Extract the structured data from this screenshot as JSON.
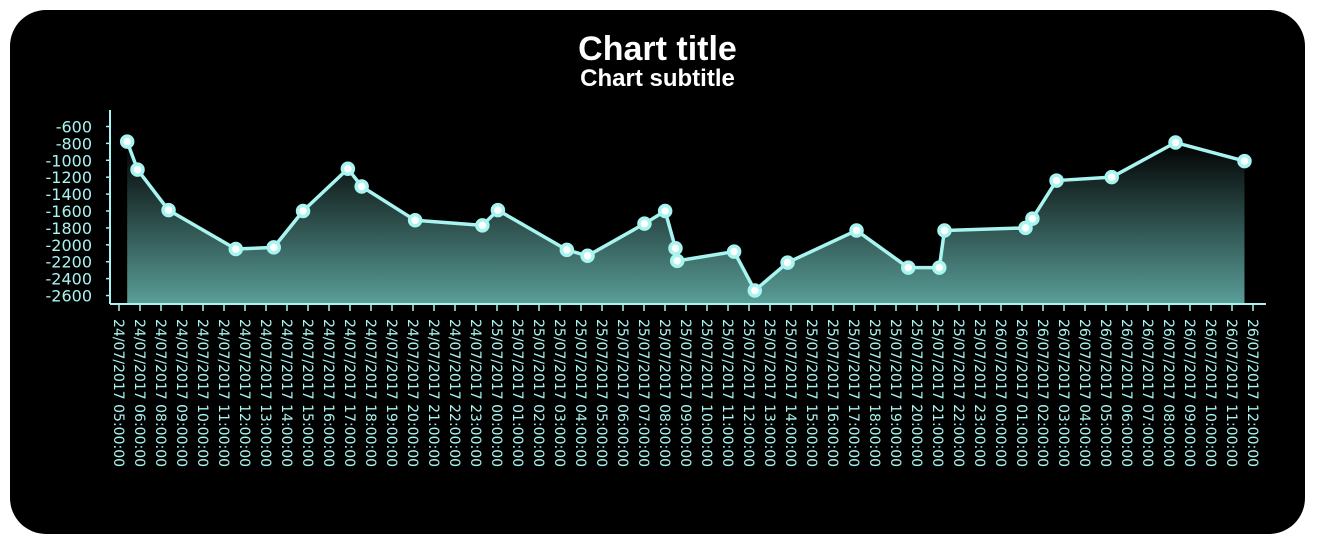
{
  "chart_data": {
    "type": "area",
    "title": "Chart title",
    "subtitle": "Chart subtitle",
    "xlabel": "",
    "ylabel": "",
    "ylim": [
      -2700,
      -500
    ],
    "yticks": [
      -600,
      -800,
      -1000,
      -1200,
      -1400,
      -1600,
      -1800,
      -2000,
      -2200,
      -2400,
      -2600
    ],
    "x_range": [
      "24/07/2017 05:00:00",
      "26/07/2017 12:00:00"
    ],
    "x_tick_labels": [
      "24/07/2017 05:00:00",
      "24/07/2017 06:00:00",
      "24/07/2017 08:00:00",
      "24/07/2017 09:00:00",
      "24/07/2017 10:00:00",
      "24/07/2017 11:00:00",
      "24/07/2017 12:00:00",
      "24/07/2017 13:00:00",
      "24/07/2017 14:00:00",
      "24/07/2017 15:00:00",
      "24/07/2017 16:00:00",
      "24/07/2017 17:00:00",
      "24/07/2017 18:00:00",
      "24/07/2017 19:00:00",
      "24/07/2017 20:00:00",
      "24/07/2017 21:00:00",
      "24/07/2017 22:00:00",
      "24/07/2017 23:00:00",
      "25/07/2017 00:00:00",
      "25/07/2017 01:00:00",
      "25/07/2017 02:00:00",
      "25/07/2017 03:00:00",
      "25/07/2017 04:00:00",
      "25/07/2017 05:00:00",
      "25/07/2017 06:00:00",
      "25/07/2017 07:00:00",
      "25/07/2017 08:00:00",
      "25/07/2017 09:00:00",
      "25/07/2017 10:00:00",
      "25/07/2017 11:00:00",
      "25/07/2017 12:00:00",
      "25/07/2017 13:00:00",
      "25/07/2017 14:00:00",
      "25/07/2017 15:00:00",
      "25/07/2017 16:00:00",
      "25/07/2017 17:00:00",
      "25/07/2017 18:00:00",
      "25/07/2017 19:00:00",
      "25/07/2017 20:00:00",
      "25/07/2017 21:00:00",
      "25/07/2017 22:00:00",
      "25/07/2017 23:00:00",
      "26/07/2017 00:00:00",
      "26/07/2017 01:00:00",
      "26/07/2017 02:00:00",
      "26/07/2017 03:00:00",
      "26/07/2017 04:00:00",
      "26/07/2017 05:00:00",
      "26/07/2017 06:00:00",
      "26/07/2017 07:00:00",
      "26/07/2017 08:00:00",
      "26/07/2017 09:00:00",
      "26/07/2017 10:00:00",
      "26/07/2017 11:00:00",
      "26/07/2017 12:00:00"
    ],
    "series": [
      {
        "points": [
          {
            "x": "24/07/2017 05:15:00",
            "y": -780
          },
          {
            "x": "24/07/2017 05:45:00",
            "y": -1110
          },
          {
            "x": "24/07/2017 07:15:00",
            "y": -1590
          },
          {
            "x": "24/07/2017 10:30:00",
            "y": -2050
          },
          {
            "x": "24/07/2017 12:20:00",
            "y": -2030
          },
          {
            "x": "24/07/2017 13:45:00",
            "y": -1600
          },
          {
            "x": "24/07/2017 15:55:00",
            "y": -1100
          },
          {
            "x": "24/07/2017 16:35:00",
            "y": -1310
          },
          {
            "x": "24/07/2017 19:10:00",
            "y": -1710
          },
          {
            "x": "24/07/2017 22:25:00",
            "y": -1770
          },
          {
            "x": "24/07/2017 23:10:00",
            "y": -1590
          },
          {
            "x": "25/07/2017 02:30:00",
            "y": -2060
          },
          {
            "x": "25/07/2017 03:30:00",
            "y": -2130
          },
          {
            "x": "25/07/2017 06:15:00",
            "y": -1750
          },
          {
            "x": "25/07/2017 07:15:00",
            "y": -1600
          },
          {
            "x": "25/07/2017 07:45:00",
            "y": -2040
          },
          {
            "x": "25/07/2017 07:50:00",
            "y": -2190
          },
          {
            "x": "25/07/2017 10:35:00",
            "y": -2080
          },
          {
            "x": "25/07/2017 11:35:00",
            "y": -2540
          },
          {
            "x": "25/07/2017 13:10:00",
            "y": -2210
          },
          {
            "x": "25/07/2017 16:30:00",
            "y": -1830
          },
          {
            "x": "25/07/2017 19:00:00",
            "y": -2270
          },
          {
            "x": "25/07/2017 20:30:00",
            "y": -2270
          },
          {
            "x": "25/07/2017 20:45:00",
            "y": -1830
          },
          {
            "x": "25/07/2017 24:40:00",
            "y": -1800
          },
          {
            "x": "26/07/2017 01:00:00",
            "y": -1690
          },
          {
            "x": "26/07/2017 02:10:00",
            "y": -1240
          },
          {
            "x": "26/07/2017 04:50:00",
            "y": -1200
          },
          {
            "x": "26/07/2017 07:55:00",
            "y": -790
          },
          {
            "x": "26/07/2017 11:15:00",
            "y": -1010
          }
        ]
      }
    ],
    "grid": false,
    "legend": "none",
    "colors": {
      "line": "#a8f4f0",
      "area_top": "#000000",
      "area_bottom": "#5a9e98",
      "axis": "#a8f4f0",
      "text": "#a8f4f0",
      "title": "#ffffff",
      "background": "#000000"
    }
  }
}
